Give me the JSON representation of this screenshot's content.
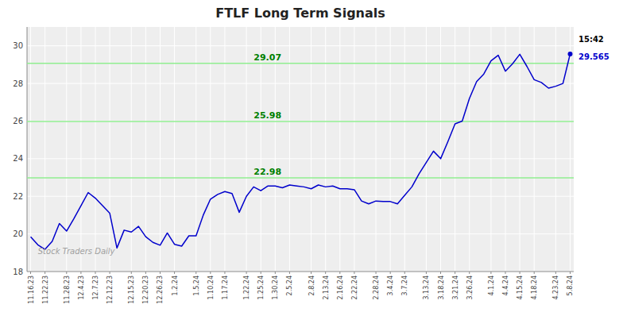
{
  "chart_data": {
    "type": "line",
    "title": "FTLF Long Term Signals",
    "categories": [
      "11.16.23",
      null,
      "11.22.23",
      null,
      null,
      "11.28.23",
      null,
      "12.4.23",
      null,
      "12.7.23",
      null,
      "12.12.23",
      null,
      null,
      "12.15.23",
      null,
      "12.20.23",
      null,
      "12.26.23",
      null,
      "1.2.24",
      null,
      null,
      "1.5.24",
      null,
      "1.10.24",
      null,
      "1.17.24",
      null,
      null,
      "1.22.24",
      null,
      "1.25.24",
      null,
      "1.30.24",
      null,
      "2.5.24",
      null,
      null,
      "2.8.24",
      null,
      "2.13.24",
      null,
      "2.16.24",
      null,
      "2.22.24",
      null,
      null,
      "2.28.24",
      null,
      "3.4.24",
      null,
      "3.7.24",
      null,
      null,
      "3.13.24",
      null,
      "3.18.24",
      null,
      "3.21.24",
      null,
      "3.26.24",
      null,
      null,
      "4.1.24",
      null,
      "4.4.24",
      null,
      "4.15.24",
      null,
      "4.18.24",
      null,
      null,
      "4.23.24",
      null,
      "5.8.24"
    ],
    "series": [
      {
        "name": "FTLF",
        "color": "#0000cc",
        "values": [
          19.85,
          19.42,
          19.18,
          19.6,
          20.55,
          20.15,
          20.8,
          21.5,
          22.2,
          21.9,
          21.5,
          21.1,
          19.25,
          20.2,
          20.1,
          20.4,
          19.85,
          19.55,
          19.4,
          20.05,
          19.45,
          19.35,
          19.9,
          19.9,
          21.0,
          21.85,
          22.1,
          22.25,
          22.15,
          21.15,
          22.0,
          22.5,
          22.3,
          22.55,
          22.55,
          22.45,
          22.6,
          22.55,
          22.5,
          22.4,
          22.6,
          22.5,
          22.55,
          22.4,
          22.4,
          22.35,
          21.75,
          21.6,
          21.75,
          21.72,
          21.72,
          21.6,
          22.05,
          22.5,
          23.2,
          23.8,
          24.4,
          24.0,
          24.9,
          25.85,
          26.0,
          27.2,
          28.1,
          28.5,
          29.2,
          29.5,
          28.65,
          29.05,
          29.55,
          28.9,
          28.2,
          28.05,
          27.75,
          27.85,
          28.0,
          29.565
        ]
      }
    ],
    "reference_lines": [
      {
        "value": 22.98,
        "label": "22.98",
        "color": "#90ee90"
      },
      {
        "value": 25.98,
        "label": "25.98",
        "color": "#90ee90"
      },
      {
        "value": 29.07,
        "label": "29.07",
        "color": "#90ee90"
      }
    ],
    "annotations": [
      {
        "text": "Stock Traders Daily"
      },
      {
        "text": "15:42"
      },
      {
        "text": "29.565"
      }
    ],
    "ylim": [
      18,
      31
    ],
    "yticks": [
      18,
      20,
      22,
      24,
      26,
      28,
      30
    ],
    "grid": true
  }
}
